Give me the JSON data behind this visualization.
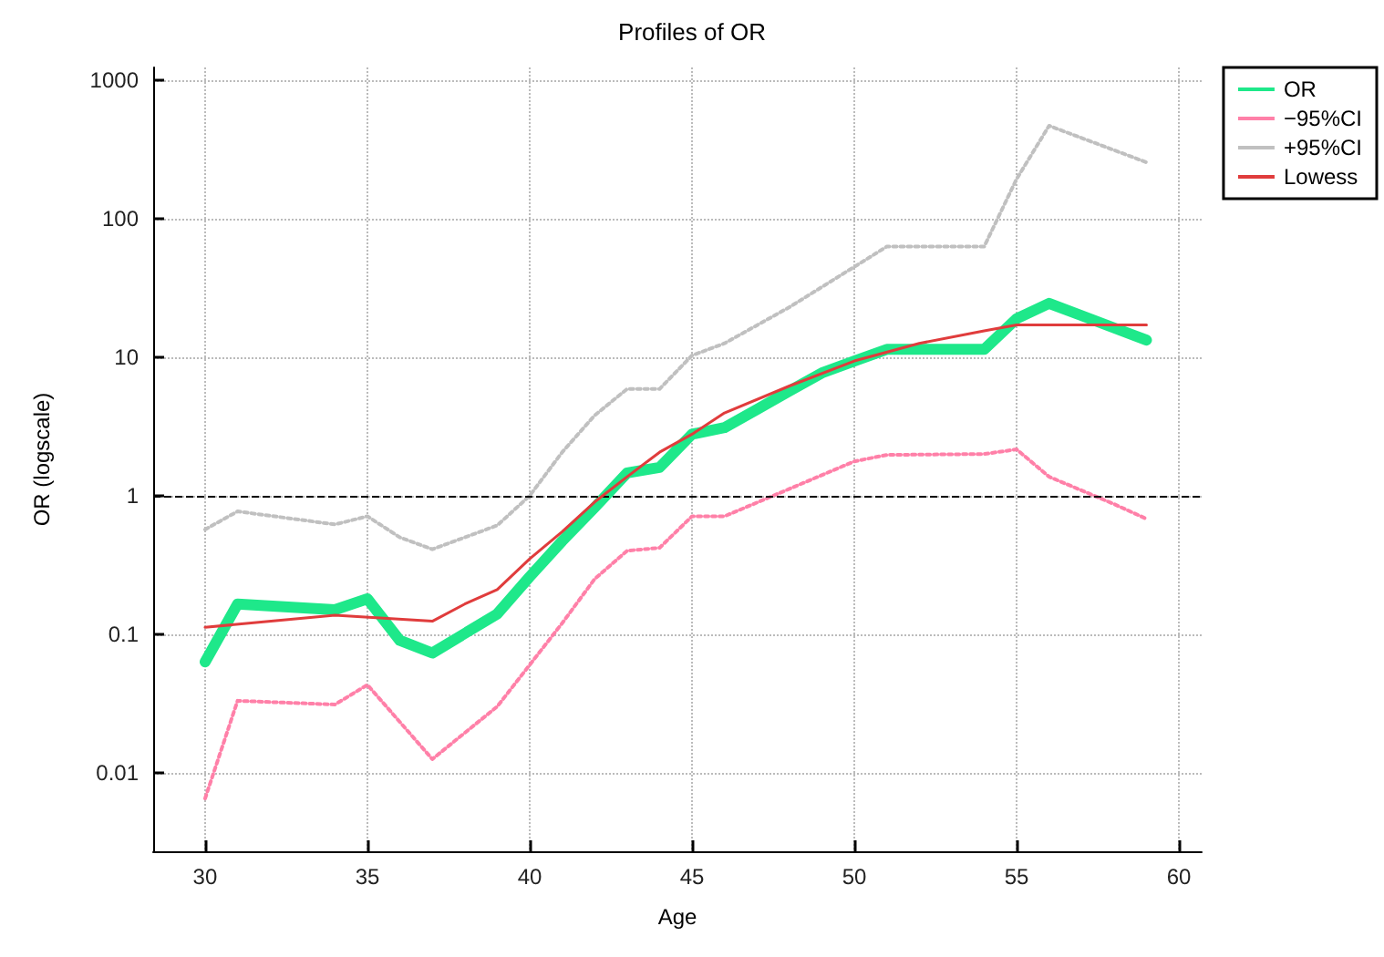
{
  "chart_data": {
    "type": "line",
    "title": "Profiles of OR",
    "xlabel": "Age",
    "ylabel": "OR (logscale)",
    "log": "y",
    "xlim": [
      28.4,
      60.7
    ],
    "xticks": [
      30,
      35,
      40,
      45,
      50,
      55,
      60
    ],
    "ylim": [
      0.0027,
      1240
    ],
    "yticks": [
      0.01,
      0.1,
      1,
      10,
      100,
      1000
    ],
    "grid": true,
    "legend": "top right",
    "marker": "none",
    "ref_lines": [
      {
        "axis": "y",
        "value": 1,
        "color": "#000000",
        "line_style": "dashed"
      }
    ],
    "series": [
      {
        "name": "OR",
        "color": "#1ee88a",
        "line_style": "solid",
        "x": [
          30,
          31,
          34,
          35,
          36,
          37,
          39,
          40,
          41,
          42,
          43,
          44,
          45,
          46,
          47,
          48,
          49,
          50,
          51,
          54,
          55,
          56,
          57,
          58,
          59
        ],
        "values": [
          0.063,
          0.165,
          0.15,
          0.18,
          0.09,
          0.073,
          0.14,
          0.26,
          0.47,
          0.82,
          1.46,
          1.6,
          2.78,
          3.1,
          4.2,
          5.7,
          7.7,
          9.4,
          11.4,
          11.4,
          19,
          24.5,
          20,
          16.3,
          13.3
        ]
      },
      {
        "name": "−95%CI",
        "color": "#ff80a8",
        "line_style": "dotted",
        "x": [
          30,
          31,
          34,
          35,
          37,
          39,
          40,
          41,
          42,
          43,
          44,
          45,
          46,
          48,
          50,
          51,
          54,
          55,
          56,
          58,
          59
        ],
        "values": [
          0.0065,
          0.033,
          0.031,
          0.043,
          0.0125,
          0.03,
          0.06,
          0.12,
          0.25,
          0.4,
          0.42,
          0.71,
          0.71,
          1.12,
          1.77,
          1.97,
          2.0,
          2.16,
          1.37,
          0.87,
          0.68
        ]
      },
      {
        "name": "+95%CI",
        "color": "#c0c0c0",
        "line_style": "dotted",
        "x": [
          30,
          31,
          34,
          35,
          36,
          37,
          39,
          40,
          41,
          42,
          43,
          44,
          45,
          46,
          48,
          50,
          51,
          54,
          55,
          56,
          59
        ],
        "values": [
          0.57,
          0.77,
          0.62,
          0.71,
          0.5,
          0.41,
          0.61,
          1.0,
          2.06,
          3.8,
          5.9,
          5.9,
          10.3,
          12.6,
          23,
          45,
          63,
          63,
          194,
          470,
          256
        ]
      },
      {
        "name": "Lowess",
        "color": "#e03c3c",
        "line_style": "solid",
        "x": [
          30,
          34,
          37,
          38,
          39,
          40,
          41,
          42,
          43,
          44,
          45,
          46,
          48,
          50,
          52,
          54,
          55,
          59
        ],
        "values": [
          0.112,
          0.137,
          0.124,
          0.165,
          0.21,
          0.35,
          0.55,
          0.9,
          1.37,
          2.06,
          2.78,
          3.96,
          6.2,
          9.4,
          12.6,
          15.5,
          17.1,
          17.1
        ]
      }
    ]
  }
}
